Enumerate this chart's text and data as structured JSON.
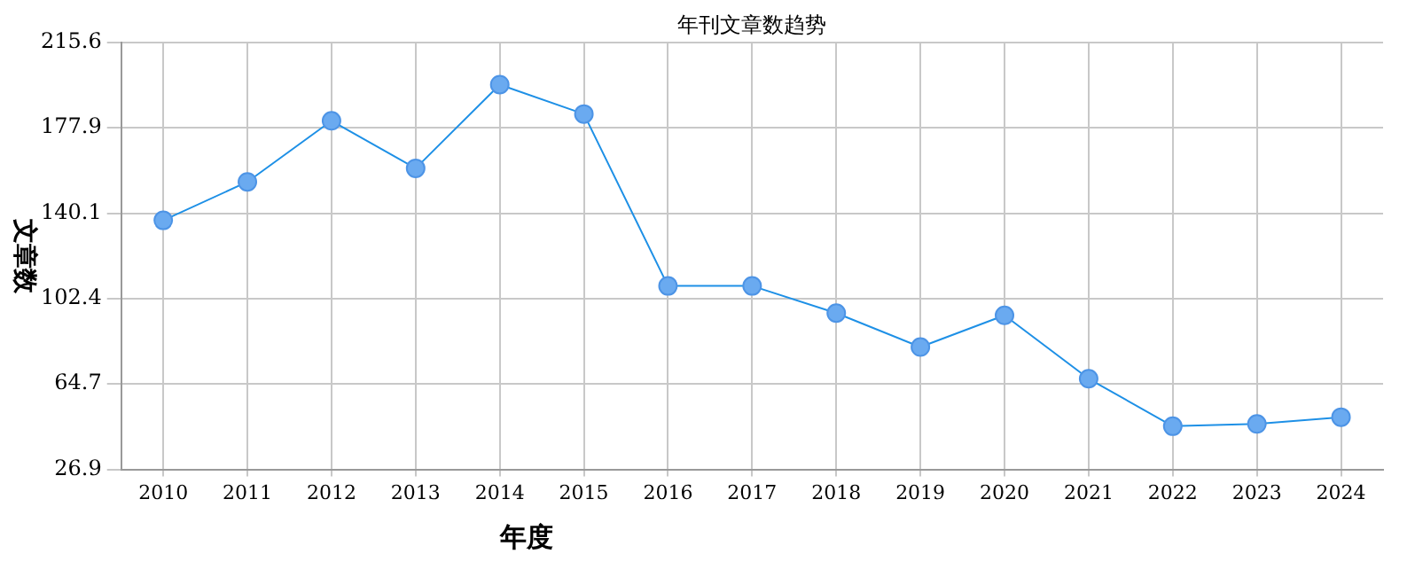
{
  "chart_data": {
    "type": "line",
    "title": "年刊文章数趋势",
    "xlabel": "年度",
    "ylabel": "文章数",
    "categories": [
      "2010",
      "2011",
      "2012",
      "2013",
      "2014",
      "2015",
      "2016",
      "2017",
      "2018",
      "2019",
      "2020",
      "2021",
      "2022",
      "2023",
      "2024"
    ],
    "series": [
      {
        "color": "#1e90e6",
        "values": [
          137,
          154,
          181,
          160,
          197,
          184,
          108,
          108,
          96,
          81,
          95,
          67,
          46,
          47,
          50
        ]
      }
    ],
    "ylim": [
      26.9,
      215.6
    ],
    "yticks": [
      26.9,
      64.7,
      102.4,
      140.1,
      177.9,
      215.6
    ],
    "grid": true,
    "legend": false,
    "marker": "circle",
    "line_style": "solid"
  }
}
